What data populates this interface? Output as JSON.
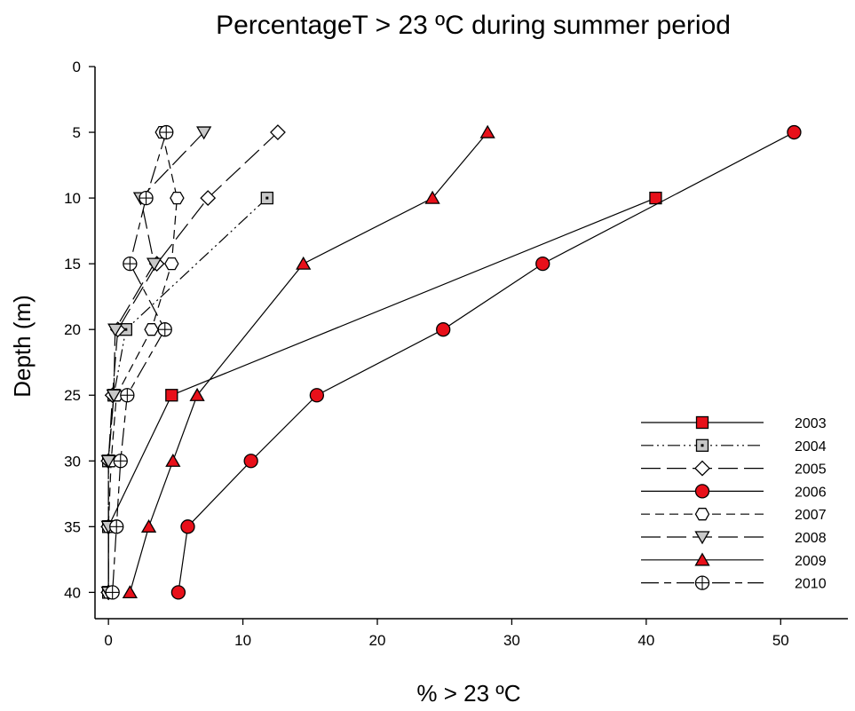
{
  "chart_data": {
    "type": "line",
    "title": "PercentageT > 23 ºC during summer period",
    "xlabel": "% > 23 ºC",
    "ylabel": "Depth (m)",
    "xlim": [
      -1,
      55
    ],
    "ylim": [
      0,
      42
    ],
    "y_inverted": true,
    "xticks": [
      0,
      10,
      20,
      30,
      40,
      50
    ],
    "yticks": [
      0,
      5,
      10,
      15,
      20,
      25,
      30,
      35,
      40
    ],
    "grid": false,
    "legend_position": "bottom-right",
    "series": [
      {
        "name": "2003",
        "marker": "square",
        "fill": "#e8101a",
        "dash": "solid",
        "points": [
          [
            40.7,
            10
          ],
          [
            4.7,
            25
          ],
          [
            0,
            35
          ],
          [
            0,
            40
          ]
        ]
      },
      {
        "name": "2004",
        "marker": "square-dot",
        "fill": "#c8c8c8",
        "dash": "dash-dot-dot",
        "points": [
          [
            11.8,
            10
          ],
          [
            1.3,
            20
          ],
          [
            0.4,
            25
          ],
          [
            0,
            30
          ],
          [
            0,
            35
          ],
          [
            0,
            40
          ]
        ]
      },
      {
        "name": "2005",
        "marker": "diamond",
        "fill": "#ffffff",
        "dash": "long-dash",
        "points": [
          [
            12.6,
            5
          ],
          [
            7.4,
            10
          ],
          [
            3.6,
            15
          ],
          [
            0.7,
            20
          ],
          [
            0.3,
            25
          ],
          [
            0,
            30
          ],
          [
            0,
            35
          ],
          [
            0,
            40
          ]
        ]
      },
      {
        "name": "2006",
        "marker": "circle",
        "fill": "#e8101a",
        "dash": "solid",
        "points": [
          [
            51,
            5
          ],
          [
            32.3,
            15
          ],
          [
            24.9,
            20
          ],
          [
            15.5,
            25
          ],
          [
            10.6,
            30
          ],
          [
            5.9,
            35
          ],
          [
            5.2,
            40
          ]
        ]
      },
      {
        "name": "2007",
        "marker": "hexagon",
        "fill": "#ffffff",
        "dash": "dash",
        "points": [
          [
            4,
            5
          ],
          [
            5.1,
            10
          ],
          [
            4.7,
            15
          ],
          [
            3.2,
            20
          ],
          [
            0.6,
            25
          ],
          [
            0.2,
            30
          ],
          [
            0,
            35
          ],
          [
            0,
            40
          ]
        ]
      },
      {
        "name": "2008",
        "marker": "triangle-down",
        "fill": "#c8c8c8",
        "dash": "long-dash",
        "points": [
          [
            7.1,
            5
          ],
          [
            2.4,
            10
          ],
          [
            3.4,
            15
          ],
          [
            0.5,
            20
          ],
          [
            0.4,
            25
          ],
          [
            0,
            30
          ],
          [
            0,
            35
          ],
          [
            0,
            40
          ]
        ]
      },
      {
        "name": "2009",
        "marker": "triangle-up",
        "fill": "#e8101a",
        "dash": "solid",
        "points": [
          [
            28.2,
            5
          ],
          [
            24.1,
            10
          ],
          [
            14.5,
            15
          ],
          [
            6.6,
            25
          ],
          [
            4.8,
            30
          ],
          [
            3,
            35
          ],
          [
            1.6,
            40
          ]
        ]
      },
      {
        "name": "2010",
        "marker": "circle-plus",
        "fill": "#ffffff",
        "dash": "long-short",
        "points": [
          [
            4.3,
            5
          ],
          [
            2.8,
            10
          ],
          [
            1.6,
            15
          ],
          [
            4.2,
            20
          ],
          [
            1.4,
            25
          ],
          [
            0.9,
            30
          ],
          [
            0.6,
            35
          ],
          [
            0.3,
            40
          ]
        ]
      }
    ]
  }
}
